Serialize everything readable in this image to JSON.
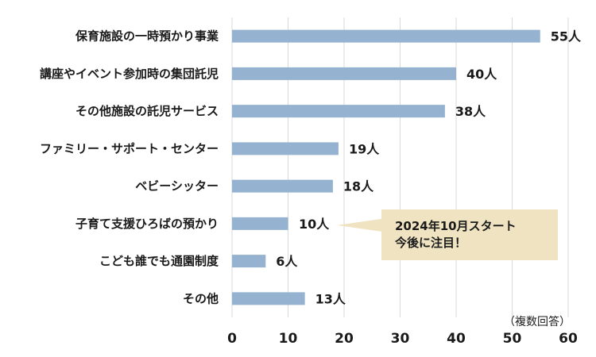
{
  "chart_data": {
    "type": "bar",
    "orientation": "horizontal",
    "categories": [
      "保育施設の一時預かり事業",
      "講座やイベント参加時の集団託児",
      "その他施設の託児サービス",
      "ファミリー・サポート・センター",
      "ベビーシッター",
      "子育て支援ひろばの預かり",
      "こども誰でも通園制度",
      "その他"
    ],
    "values": [
      55,
      40,
      38,
      19,
      18,
      10,
      6,
      13
    ],
    "value_labels": [
      "55人",
      "40人",
      "38人",
      "19人",
      "18人",
      "10人",
      "6人",
      "13人"
    ],
    "xlim": [
      0,
      60
    ],
    "xticks": [
      "0",
      "10",
      "20",
      "30",
      "40",
      "50",
      "60"
    ],
    "grid": true,
    "bar_color": "#95b3d0",
    "grid_color": "#d9d9d9",
    "note": "（複数回答）",
    "callout": {
      "lines": [
        "2024年10月スタート",
        "今後に注目！"
      ],
      "target_category": "子育て支援ひろばの預かり",
      "fill": "#efe3c2"
    }
  }
}
